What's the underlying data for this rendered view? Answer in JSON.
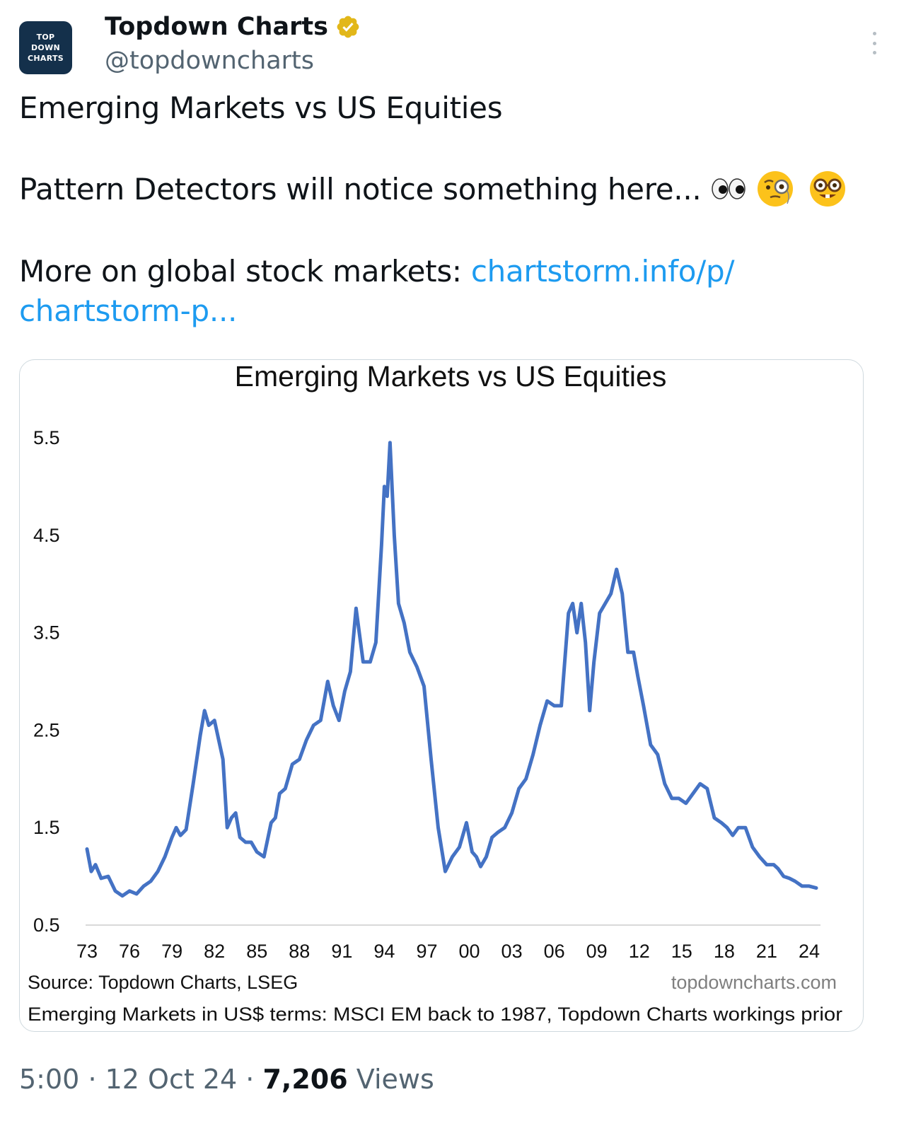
{
  "tweet": {
    "avatar_lines": [
      "TOP",
      "DOWN",
      "CHARTS"
    ],
    "display_name": "Topdown Charts",
    "handle": "@topdowncharts",
    "text_line1": "Emerging Markets vs US Equities",
    "text_line2": "Pattern Detectors will notice something here...",
    "text_line3_prefix": "More on global stock markets: ",
    "link_line1": "chartstorm.info/p/",
    "link_line2": "chartstorm-p...",
    "emojis": [
      "eyes-emoji",
      "face-with-monocle-emoji",
      "nerd-face-emoji"
    ],
    "time": "5:00",
    "separator": "·",
    "date": "12 Oct 24",
    "views_count": "7,206",
    "views_label": "Views",
    "link_color": "#1d9bf0",
    "verified_color": "#e2b719"
  },
  "chart_data": {
    "type": "line",
    "title": "Emerging Markets vs US Equities",
    "xlabel": "",
    "ylabel": "",
    "x_tick_labels": [
      "73",
      "76",
      "79",
      "82",
      "85",
      "88",
      "91",
      "94",
      "97",
      "00",
      "03",
      "06",
      "09",
      "12",
      "15",
      "18",
      "21",
      "24"
    ],
    "y_tick_labels": [
      "5.5",
      "4.5",
      "3.5",
      "2.5",
      "1.5",
      "0.5"
    ],
    "ylim": [
      0.5,
      5.5
    ],
    "xlim": [
      1973,
      2024.8
    ],
    "grid": false,
    "line_color": "#4472c4",
    "source": "Source: Topdown Charts, LSEG",
    "watermark": "topdowncharts.com",
    "footnote": "Emerging Markets in US$ terms: MSCI EM back to 1987, Topdown Charts workings prior",
    "series": [
      {
        "x": [
          1973.0,
          1973.3,
          1973.6,
          1974.0,
          1974.5,
          1975.0,
          1975.5,
          1976.0,
          1976.5,
          1977.0,
          1977.5,
          1978.0,
          1978.5,
          1979.0,
          1979.3,
          1979.6,
          1980.0,
          1980.5,
          1981.0,
          1981.3,
          1981.6,
          1982.0,
          1982.3,
          1982.6,
          1982.9,
          1983.2,
          1983.5,
          1983.8,
          1984.2,
          1984.6,
          1985.0,
          1985.5,
          1986.0,
          1986.3,
          1986.6,
          1987.0,
          1987.5,
          1988.0,
          1988.5,
          1989.0,
          1989.5,
          1990.0,
          1990.4,
          1990.8,
          1991.2,
          1991.6,
          1992.0,
          1992.5,
          1993.0,
          1993.4,
          1993.8,
          1994.0,
          1994.2,
          1994.4,
          1994.7,
          1995.0,
          1995.4,
          1995.8,
          1996.3,
          1996.8,
          1997.3,
          1997.8,
          1998.3,
          1998.8,
          1999.3,
          1999.8,
          2000.2,
          2000.5,
          2000.8,
          2001.2,
          2001.6,
          2002.0,
          2002.5,
          2003.0,
          2003.5,
          2004.0,
          2004.5,
          2005.0,
          2005.5,
          2006.0,
          2006.5,
          2007.0,
          2007.3,
          2007.6,
          2007.9,
          2008.2,
          2008.5,
          2008.8,
          2009.2,
          2009.6,
          2010.0,
          2010.4,
          2010.8,
          2011.2,
          2011.6,
          2011.9,
          2012.3,
          2012.8,
          2013.3,
          2013.8,
          2014.3,
          2014.8,
          2015.3,
          2015.8,
          2016.3,
          2016.8,
          2017.3,
          2017.8,
          2018.2,
          2018.6,
          2019.0,
          2019.5,
          2020.0,
          2020.5,
          2021.0,
          2021.5,
          2021.8,
          2022.2,
          2022.6,
          2023.0,
          2023.5,
          2024.0,
          2024.5
        ],
        "values": [
          1.28,
          1.05,
          1.12,
          0.98,
          1.0,
          0.85,
          0.8,
          0.85,
          0.82,
          0.9,
          0.95,
          1.05,
          1.2,
          1.4,
          1.5,
          1.42,
          1.48,
          1.95,
          2.45,
          2.7,
          2.55,
          2.6,
          2.4,
          2.2,
          1.5,
          1.6,
          1.65,
          1.4,
          1.35,
          1.35,
          1.25,
          1.2,
          1.55,
          1.6,
          1.85,
          1.9,
          2.15,
          2.2,
          2.4,
          2.55,
          2.6,
          3.0,
          2.75,
          2.6,
          2.9,
          3.1,
          3.75,
          3.2,
          3.2,
          3.4,
          4.4,
          5.0,
          4.9,
          5.45,
          4.5,
          3.8,
          3.6,
          3.3,
          3.15,
          2.95,
          2.2,
          1.5,
          1.05,
          1.2,
          1.3,
          1.55,
          1.25,
          1.2,
          1.1,
          1.2,
          1.4,
          1.45,
          1.5,
          1.65,
          1.9,
          2.0,
          2.25,
          2.55,
          2.8,
          2.75,
          2.75,
          3.7,
          3.8,
          3.5,
          3.8,
          3.4,
          2.7,
          3.2,
          3.7,
          3.8,
          3.9,
          4.15,
          3.9,
          3.3,
          3.3,
          3.05,
          2.75,
          2.35,
          2.25,
          1.95,
          1.8,
          1.8,
          1.75,
          1.85,
          1.95,
          1.9,
          1.6,
          1.55,
          1.5,
          1.42,
          1.5,
          1.5,
          1.3,
          1.2,
          1.12,
          1.12,
          1.08,
          1.0,
          0.98,
          0.95,
          0.9,
          0.9,
          0.88
        ]
      }
    ]
  }
}
